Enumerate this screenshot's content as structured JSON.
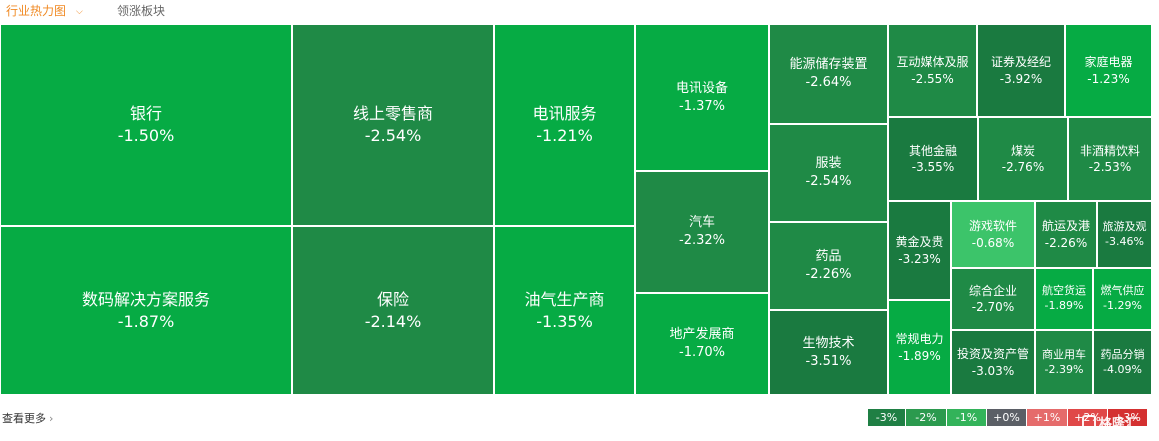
{
  "tabs": {
    "active": "行业热力图",
    "other": "领涨板块"
  },
  "colors": {
    "very_dark": "#1a7a40",
    "dark": "#1f8a46",
    "medium": "#0f9d45",
    "bright": "#06ab44",
    "light": "#3cc46a",
    "border": "#ffffff"
  },
  "heatmap": [
    {
      "name": "银行",
      "change": "-1.50%",
      "shade": "bright"
    },
    {
      "name": "数码解决方案服务",
      "change": "-1.87%",
      "shade": "bright"
    },
    {
      "name": "线上零售商",
      "change": "-2.54%",
      "shade": "dark"
    },
    {
      "name": "保险",
      "change": "-2.14%",
      "shade": "dark"
    },
    {
      "name": "电讯服务",
      "change": "-1.21%",
      "shade": "bright"
    },
    {
      "name": "油气生产商",
      "change": "-1.35%",
      "shade": "bright"
    },
    {
      "name": "电讯设备",
      "change": "-1.37%",
      "shade": "bright"
    },
    {
      "name": "汽车",
      "change": "-2.32%",
      "shade": "dark"
    },
    {
      "name": "地产发展商",
      "change": "-1.70%",
      "shade": "bright"
    },
    {
      "name": "能源储存装置",
      "change": "-2.64%",
      "shade": "dark"
    },
    {
      "name": "服装",
      "change": "-2.54%",
      "shade": "dark"
    },
    {
      "name": "药品",
      "change": "-2.26%",
      "shade": "dark"
    },
    {
      "name": "生物技术",
      "change": "-3.51%",
      "shade": "very_dark"
    },
    {
      "name": "互动媒体及服",
      "change": "-2.55%",
      "shade": "dark"
    },
    {
      "name": "证券及经纪",
      "change": "-3.92%",
      "shade": "very_dark"
    },
    {
      "name": "家庭电器",
      "change": "-1.23%",
      "shade": "bright"
    },
    {
      "name": "其他金融",
      "change": "-3.55%",
      "shade": "very_dark"
    },
    {
      "name": "煤炭",
      "change": "-2.76%",
      "shade": "dark"
    },
    {
      "name": "非酒精饮料",
      "change": "-2.53%",
      "shade": "dark"
    },
    {
      "name": "黄金及贵",
      "change": "-3.23%",
      "shade": "very_dark"
    },
    {
      "name": "常规电力",
      "change": "-1.89%",
      "shade": "bright"
    },
    {
      "name": "游戏软件",
      "change": "-0.68%",
      "shade": "light"
    },
    {
      "name": "航运及港",
      "change": "-2.26%",
      "shade": "dark"
    },
    {
      "name": "旅游及观",
      "change": "-3.46%",
      "shade": "very_dark"
    },
    {
      "name": "综合企业",
      "change": "-2.70%",
      "shade": "dark"
    },
    {
      "name": "航空货运",
      "change": "-1.89%",
      "shade": "bright"
    },
    {
      "name": "燃气供应",
      "change": "-1.29%",
      "shade": "bright"
    },
    {
      "name": "投资及资产管",
      "change": "-3.03%",
      "shade": "very_dark"
    },
    {
      "name": "商业用车",
      "change": "-2.39%",
      "shade": "dark"
    },
    {
      "name": "药品分销",
      "change": "-4.09%",
      "shade": "very_dark"
    }
  ],
  "footer": {
    "more_label": "查看更多"
  },
  "legend": [
    {
      "label": "-3%",
      "color": "#1f7f44"
    },
    {
      "label": "-2%",
      "color": "#2b9a4e"
    },
    {
      "label": "-1%",
      "color": "#33b35a"
    },
    {
      "label": "+0%",
      "color": "#5b5f66"
    },
    {
      "label": "+1%",
      "color": "#e56b6b"
    },
    {
      "label": "+2%",
      "color": "#e04848"
    },
    {
      "label": "+3%",
      "color": "#d43030"
    }
  ],
  "watermark": {
    "text": "格隆汇"
  }
}
